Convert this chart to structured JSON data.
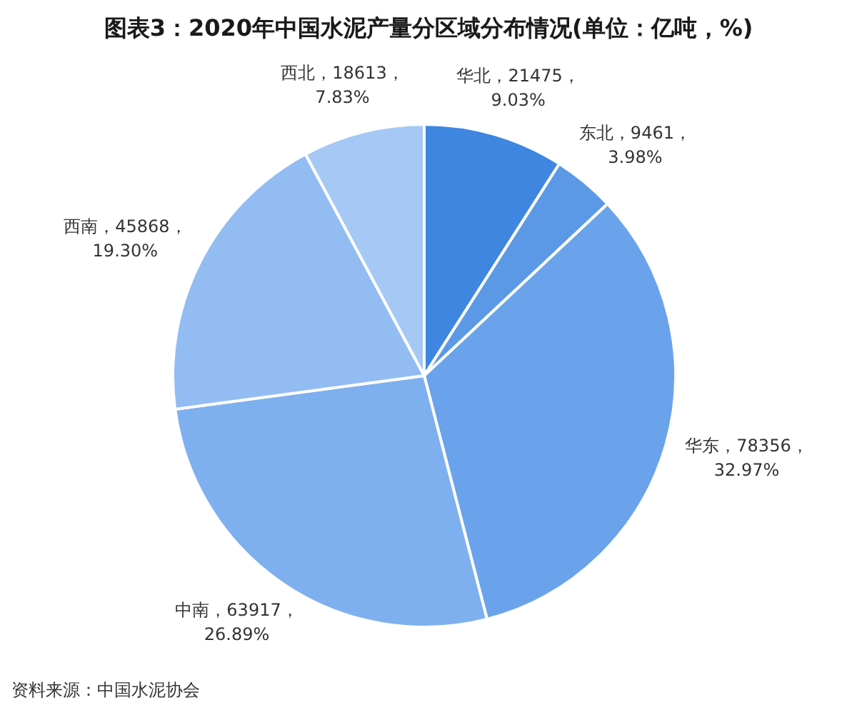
{
  "chart_data": {
    "type": "pie",
    "title": "图表3：2020年中国水泥产量分区域分布情况(单位：亿吨，%)",
    "categories": [
      "华北",
      "东北",
      "华东",
      "中南",
      "西南",
      "西北"
    ],
    "values": [
      21475,
      9461,
      78356,
      63917,
      45868,
      18613
    ],
    "colors": [
      "#3f86e0",
      "#5b99e6",
      "#6aa3eb",
      "#7eb0ef",
      "#92bcf2",
      "#a5c8f4"
    ],
    "value_labels": [
      "21475，9.03%",
      "9461，3.98%",
      "78356，32.97%",
      "63917，26.89%",
      "45868，19.30%",
      "18613，7.83%"
    ],
    "annotations": [
      "资料来源：中国水泥协会"
    ],
    "legend": false
  }
}
